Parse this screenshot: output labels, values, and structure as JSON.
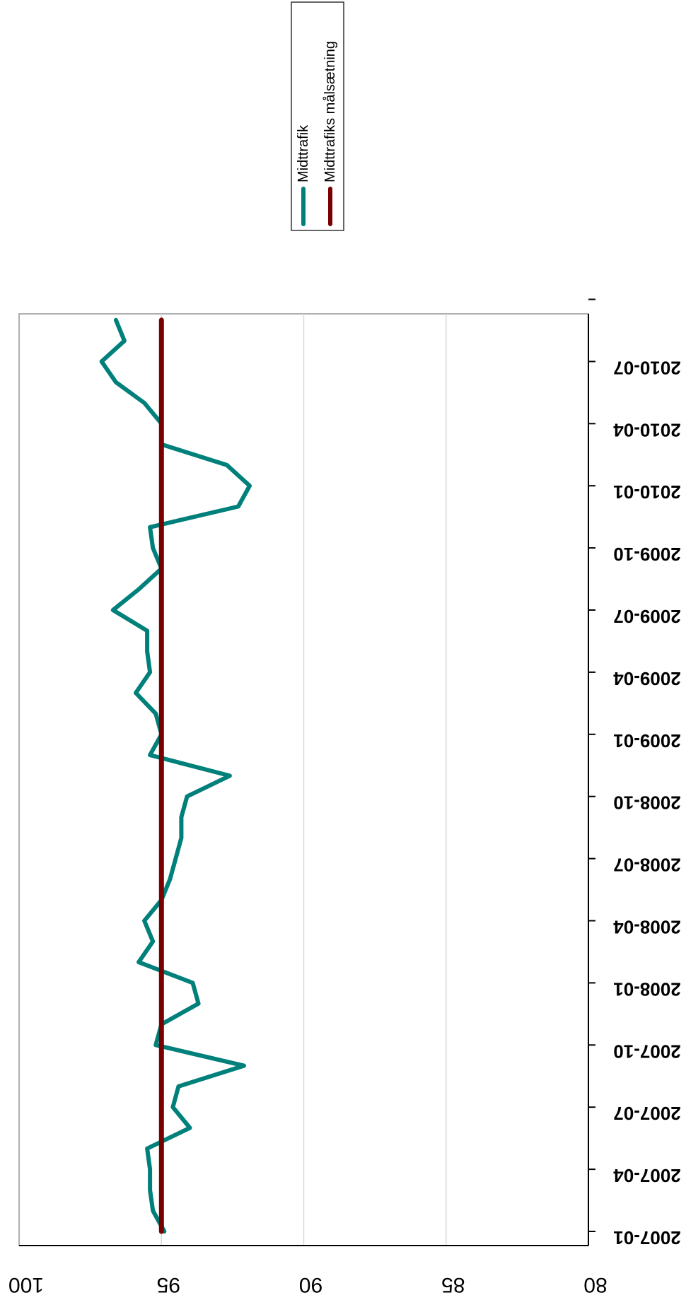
{
  "chart_data": {
    "type": "line",
    "orientation": "rotated-180-degrees",
    "x": [
      "2007-01",
      "2007-02",
      "2007-03",
      "2007-04",
      "2007-05",
      "2007-06",
      "2007-07",
      "2007-08",
      "2007-09",
      "2007-10",
      "2007-11",
      "2007-12",
      "2008-01",
      "2008-02",
      "2008-03",
      "2008-04",
      "2008-05",
      "2008-06",
      "2008-07",
      "2008-08",
      "2008-09",
      "2008-10",
      "2008-11",
      "2008-12",
      "2009-01",
      "2009-02",
      "2009-03",
      "2009-04",
      "2009-05",
      "2009-06",
      "2009-07",
      "2009-08",
      "2009-09",
      "2009-10",
      "2009-11",
      "2009-12",
      "2010-01",
      "2010-02",
      "2010-03",
      "2010-04",
      "2010-05",
      "2010-06",
      "2010-07",
      "2010-08",
      "2010-09"
    ],
    "x_tick_labels": [
      "2007-01",
      "2007-04",
      "2007-07",
      "2007-10",
      "2008-01",
      "2008-04",
      "2008-07",
      "2008-10",
      "2009-01",
      "2009-04",
      "2009-07",
      "2009-10",
      "2010-01",
      "2010-04",
      "2010-07"
    ],
    "series": [
      {
        "name": "Midttrafik",
        "color": "#00807a",
        "values": [
          94.9,
          95.3,
          95.4,
          95.4,
          95.5,
          94.0,
          94.6,
          94.4,
          92.1,
          95.2,
          95.0,
          93.7,
          93.9,
          95.8,
          95.3,
          95.6,
          95.0,
          94.7,
          94.5,
          94.3,
          94.3,
          94.1,
          92.6,
          95.4,
          95.0,
          95.2,
          95.9,
          95.4,
          95.5,
          95.5,
          96.7,
          95.8,
          95.0,
          95.3,
          95.4,
          92.3,
          91.9,
          92.7,
          95.0,
          95.0,
          95.6,
          96.6,
          97.1,
          96.3,
          96.6
        ]
      },
      {
        "name": "Midttrafiks målsætning",
        "color": "#7a0000",
        "values": [
          95,
          95,
          95,
          95,
          95,
          95,
          95,
          95,
          95,
          95,
          95,
          95,
          95,
          95,
          95,
          95,
          95,
          95,
          95,
          95,
          95,
          95,
          95,
          95,
          95,
          95,
          95,
          95,
          95,
          95,
          95,
          95,
          95,
          95,
          95,
          95,
          95,
          95,
          95,
          95,
          95,
          95,
          95,
          95,
          95
        ]
      }
    ],
    "y_ticks": [
      "100",
      "95",
      "90",
      "85",
      "80"
    ],
    "ylim": [
      80,
      100
    ],
    "grid": "horizontal",
    "legend_placement": "top"
  }
}
